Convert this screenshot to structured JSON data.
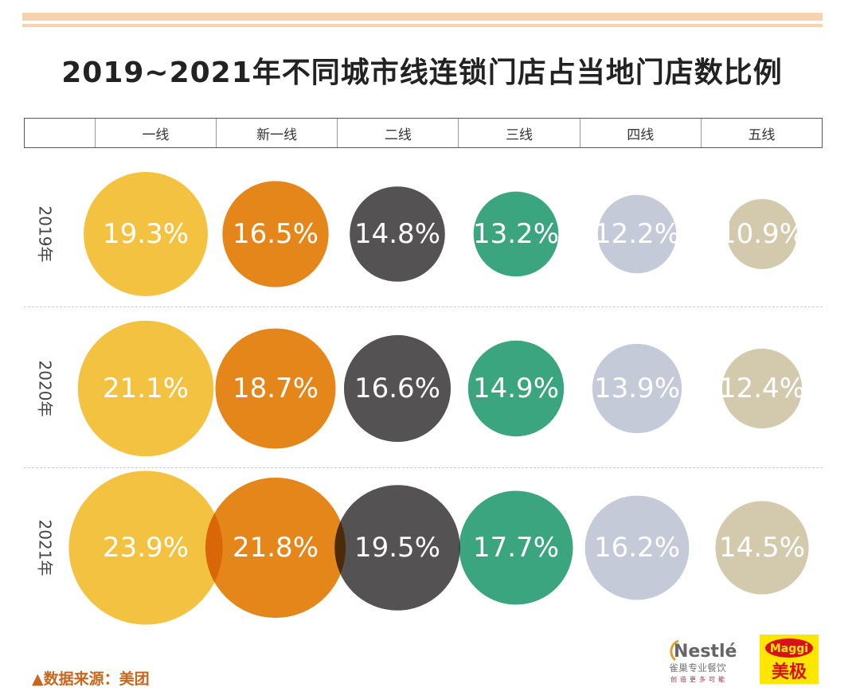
{
  "chart_data": {
    "type": "bubble",
    "title": "2019~2021年不同城市线连锁门店占当地门店数比例",
    "categories": [
      "一线",
      "新一线",
      "二线",
      "三线",
      "四线",
      "五线"
    ],
    "series": [
      {
        "name": "2019年",
        "values": [
          19.3,
          16.5,
          14.8,
          13.2,
          12.2,
          10.9
        ]
      },
      {
        "name": "2020年",
        "values": [
          21.1,
          18.7,
          16.6,
          14.9,
          13.9,
          12.4
        ]
      },
      {
        "name": "2021年",
        "values": [
          23.9,
          21.8,
          19.5,
          17.7,
          16.2,
          14.5
        ]
      }
    ],
    "unit": "%",
    "colors": [
      "#f2c240",
      "#e5861a",
      "#545252",
      "#3ba57f",
      "#c5cad8",
      "#d3caae"
    ]
  },
  "source": "▲数据来源：美团",
  "logos": {
    "nestle": "Nestlé",
    "nestle_cn": "雀巢专业餐饮",
    "nestle_tagline": "创造更多可能",
    "maggi": "Maggi",
    "maggi_cn": "美极"
  }
}
